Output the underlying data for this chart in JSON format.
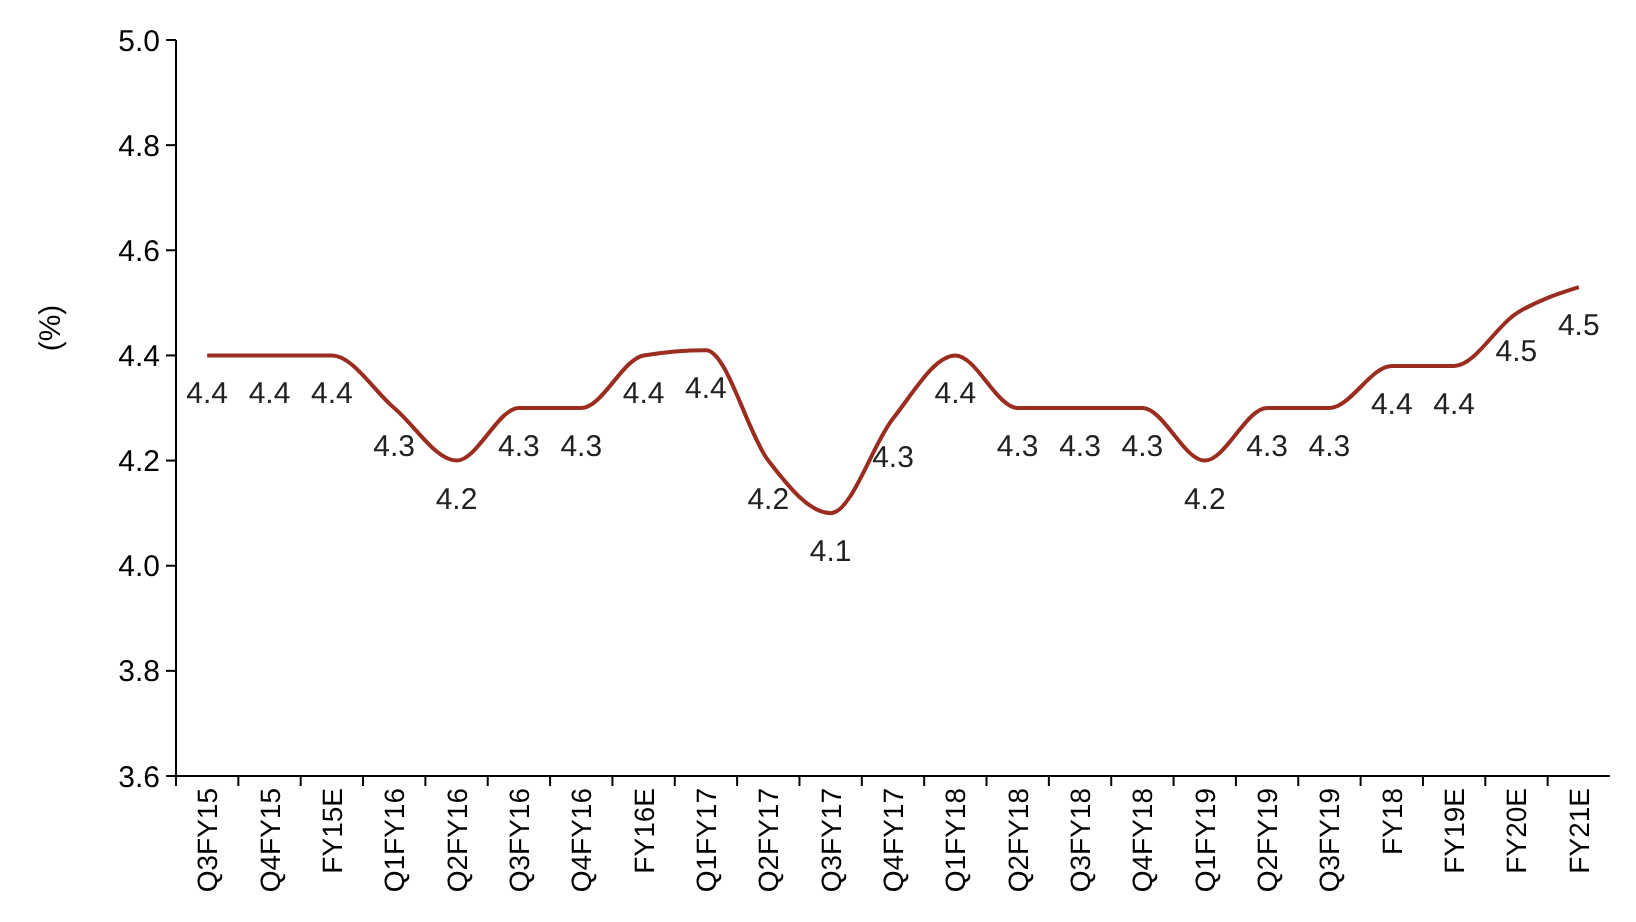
{
  "chart_data": {
    "type": "line",
    "ylabel": "(%)",
    "categories": [
      "Q3FY15",
      "Q4FY15",
      "FY15E",
      "Q1FY16",
      "Q2FY16",
      "Q3FY16",
      "Q4FY16",
      "FY16E",
      "Q1FY17",
      "Q2FY17",
      "Q3FY17",
      "Q4FY17",
      "Q1FY18",
      "Q2FY18",
      "Q3FY18",
      "Q4FY18",
      "Q1FY19",
      "Q2FY19",
      "Q3FY19",
      "FY18",
      "FY19E",
      "FY20E",
      "FY21E"
    ],
    "series": [
      {
        "color": "#9b2d20",
        "values": [
          4.4,
          4.4,
          4.4,
          4.3,
          4.2,
          4.3,
          4.3,
          4.4,
          4.41,
          4.2,
          4.1,
          4.28,
          4.4,
          4.3,
          4.3,
          4.3,
          4.2,
          4.3,
          4.3,
          4.38,
          4.38,
          4.48,
          4.53
        ],
        "value_labels": [
          "4.4",
          "4.4",
          "4.4",
          "4.3",
          "4.2",
          "4.3",
          "4.3",
          "4.4",
          "4.4",
          "4.2",
          "4.1",
          "4.3",
          "4.4",
          "4.3",
          "4.3",
          "4.3",
          "4.2",
          "4.3",
          "4.3",
          "4.4",
          "4.4",
          "4.5",
          "4.5"
        ]
      }
    ],
    "ylim": [
      3.6,
      5.0
    ],
    "yticks": [
      {
        "value": 3.6,
        "label": "3.6"
      },
      {
        "value": 3.8,
        "label": "3.8"
      },
      {
        "value": 4.0,
        "label": "4.0"
      },
      {
        "value": 4.2,
        "label": "4.2"
      },
      {
        "value": 4.4,
        "label": "4.4"
      },
      {
        "value": 4.6,
        "label": "4.6"
      },
      {
        "value": 4.8,
        "label": "4.8"
      },
      {
        "value": 5.0,
        "label": "5.0"
      }
    ],
    "marker": "none",
    "line_style": "solid"
  }
}
